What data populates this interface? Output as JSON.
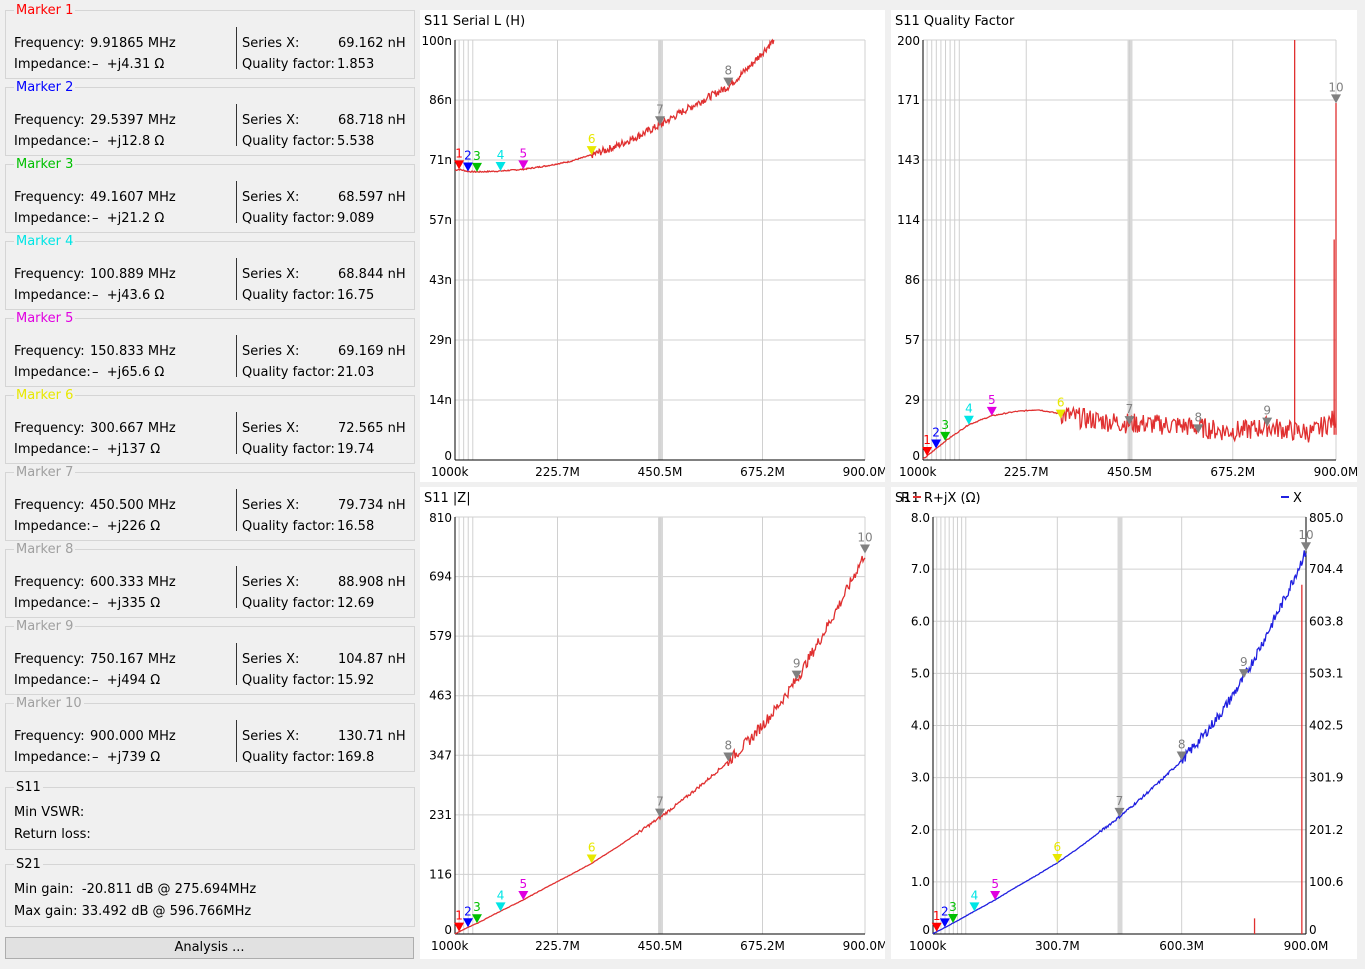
{
  "colors": {
    "marker1": "#ff0000",
    "marker2": "#0000ff",
    "marker3": "#00c000",
    "marker4": "#00e5e5",
    "marker5": "#e000e0",
    "marker6": "#e8e800",
    "marker7": "#808080",
    "trace_red": "#e03030",
    "trace_blue": "#2020e0",
    "grid": "#d0d0d0"
  },
  "markers": [
    {
      "title": "Marker 1",
      "freq_label": "Frequency:",
      "freq": "9.91865 MHz",
      "imp_label": "Impedance:",
      "imp": "–  +j4.31 Ω",
      "sx_label": "Series X:",
      "sx": "69.162 nH",
      "q_label": "Quality factor:",
      "q": "1.853"
    },
    {
      "title": "Marker 2",
      "freq_label": "Frequency:",
      "freq": "29.5397 MHz",
      "imp_label": "Impedance:",
      "imp": "–  +j12.8 Ω",
      "sx_label": "Series X:",
      "sx": "68.718 nH",
      "q_label": "Quality factor:",
      "q": "5.538"
    },
    {
      "title": "Marker 3",
      "freq_label": "Frequency:",
      "freq": "49.1607 MHz",
      "imp_label": "Impedance:",
      "imp": "–  +j21.2 Ω",
      "sx_label": "Series X:",
      "sx": "68.597 nH",
      "q_label": "Quality factor:",
      "q": "9.089"
    },
    {
      "title": "Marker 4",
      "freq_label": "Frequency:",
      "freq": "100.889 MHz",
      "imp_label": "Impedance:",
      "imp": "–  +j43.6 Ω",
      "sx_label": "Series X:",
      "sx": "68.844 nH",
      "q_label": "Quality factor:",
      "q": "16.75"
    },
    {
      "title": "Marker 5",
      "freq_label": "Frequency:",
      "freq": "150.833 MHz",
      "imp_label": "Impedance:",
      "imp": "–  +j65.6 Ω",
      "sx_label": "Series X:",
      "sx": "69.169 nH",
      "q_label": "Quality factor:",
      "q": "21.03"
    },
    {
      "title": "Marker 6",
      "freq_label": "Frequency:",
      "freq": "300.667 MHz",
      "imp_label": "Impedance:",
      "imp": "–  +j137 Ω",
      "sx_label": "Series X:",
      "sx": "72.565 nH",
      "q_label": "Quality factor:",
      "q": "19.74"
    },
    {
      "title": "Marker 7",
      "freq_label": "Frequency:",
      "freq": "450.500 MHz",
      "imp_label": "Impedance:",
      "imp": "–  +j226 Ω",
      "sx_label": "Series X:",
      "sx": "79.734 nH",
      "q_label": "Quality factor:",
      "q": "16.58"
    },
    {
      "title": "Marker 8",
      "freq_label": "Frequency:",
      "freq": "600.333 MHz",
      "imp_label": "Impedance:",
      "imp": "–  +j335 Ω",
      "sx_label": "Series X:",
      "sx": "88.908 nH",
      "q_label": "Quality factor:",
      "q": "12.69"
    },
    {
      "title": "Marker 9",
      "freq_label": "Frequency:",
      "freq": "750.167 MHz",
      "imp_label": "Impedance:",
      "imp": "–  +j494 Ω",
      "sx_label": "Series X:",
      "sx": "104.87 nH",
      "q_label": "Quality factor:",
      "q": "15.92"
    },
    {
      "title": "Marker 10",
      "freq_label": "Frequency:",
      "freq": "900.000 MHz",
      "imp_label": "Impedance:",
      "imp": "–  +j739 Ω",
      "sx_label": "Series X:",
      "sx": "130.71 nH",
      "q_label": "Quality factor:",
      "q": "169.8"
    }
  ],
  "marker_title_colors": [
    "#ff0000",
    "#0000ff",
    "#00c000",
    "#00e5e5",
    "#e000e0",
    "#e8e800",
    "#a0a0a0",
    "#a0a0a0",
    "#a0a0a0",
    "#a0a0a0"
  ],
  "s11": {
    "title": "S11",
    "min_vswr_label": "Min VSWR:",
    "return_loss_label": "Return loss:"
  },
  "s21": {
    "title": "S21",
    "min_gain": "Min gain:  -20.811 dB @ 275.694MHz",
    "max_gain": "Max gain: 33.492 dB @ 596.766MHz"
  },
  "analysis_button": "Analysis ...",
  "chart_data": [
    {
      "id": "serial_l",
      "type": "line",
      "title": "S11  Serial L (H)",
      "x_ticks": [
        "1000k",
        "225.7M",
        "450.5M",
        "675.2M",
        "900.0M"
      ],
      "y_ticks": [
        "100n",
        "86n",
        "71n",
        "57n",
        "43n",
        "29n",
        "14n",
        "0"
      ],
      "xlim": [
        1,
        900
      ],
      "ylim": [
        0,
        100
      ],
      "x_unit": "MHz",
      "y_unit": "nH",
      "x": [
        1,
        10,
        30,
        50,
        100,
        150,
        200,
        250,
        300,
        350,
        400,
        450,
        500,
        550,
        600,
        650,
        700
      ],
      "y": [
        69,
        69.2,
        68.7,
        68.6,
        68.8,
        69.2,
        70,
        71,
        72.6,
        74.5,
        77,
        79.7,
        83,
        86,
        88.9,
        94,
        100
      ],
      "markers": [
        {
          "label": "1",
          "x": 9.9,
          "y": 69.2,
          "color": "#ff0000"
        },
        {
          "label": "2",
          "x": 29.5,
          "y": 68.7,
          "color": "#0000ff"
        },
        {
          "label": "3",
          "x": 49.2,
          "y": 68.6,
          "color": "#00c000"
        },
        {
          "label": "4",
          "x": 100.9,
          "y": 68.8,
          "color": "#00e5e5"
        },
        {
          "label": "5",
          "x": 150.8,
          "y": 69.2,
          "color": "#e000e0"
        },
        {
          "label": "6",
          "x": 300.7,
          "y": 72.6,
          "color": "#e8e800"
        },
        {
          "label": "7",
          "x": 450.5,
          "y": 79.7,
          "color": "#808080"
        },
        {
          "label": "8",
          "x": 600.3,
          "y": 88.9,
          "color": "#808080"
        }
      ]
    },
    {
      "id": "quality",
      "type": "line",
      "title": "S11  Quality Factor",
      "x_ticks": [
        "1000k",
        "225.7M",
        "450.5M",
        "675.2M",
        "900.0M"
      ],
      "y_ticks": [
        "200",
        "171",
        "143",
        "114",
        "86",
        "57",
        "29",
        "0"
      ],
      "xlim": [
        1,
        900
      ],
      "ylim": [
        0,
        200
      ],
      "x_unit": "MHz",
      "x": [
        1,
        10,
        30,
        50,
        100,
        150,
        200,
        250,
        300,
        350,
        400,
        450,
        500,
        550,
        600,
        650,
        700,
        750,
        800,
        850,
        900
      ],
      "y": [
        0.5,
        1.9,
        5.5,
        9.1,
        16.8,
        21,
        23,
        24,
        22,
        19.7,
        18.5,
        17.5,
        17,
        16.6,
        15.5,
        14,
        14,
        16,
        14,
        13,
        20
      ],
      "spikes": [
        {
          "x": 810,
          "y": 200
        },
        {
          "x": 896,
          "y": 105
        },
        {
          "x": 900,
          "y": 170
        }
      ],
      "markers": [
        {
          "label": "1",
          "x": 9.9,
          "y": 1.9,
          "color": "#ff0000"
        },
        {
          "label": "2",
          "x": 29.5,
          "y": 5.5,
          "color": "#0000ff"
        },
        {
          "label": "3",
          "x": 49.2,
          "y": 9.1,
          "color": "#00c000"
        },
        {
          "label": "4",
          "x": 100.9,
          "y": 16.8,
          "color": "#00e5e5"
        },
        {
          "label": "5",
          "x": 150.8,
          "y": 21,
          "color": "#e000e0"
        },
        {
          "label": "6",
          "x": 300.7,
          "y": 19.7,
          "color": "#e8e800"
        },
        {
          "label": "7",
          "x": 450.5,
          "y": 16.6,
          "color": "#808080"
        },
        {
          "label": "8",
          "x": 600.3,
          "y": 12.7,
          "color": "#808080"
        },
        {
          "label": "9",
          "x": 750.2,
          "y": 15.9,
          "color": "#808080"
        },
        {
          "label": "10",
          "x": 900,
          "y": 169.8,
          "color": "#808080"
        }
      ]
    },
    {
      "id": "abs_z",
      "type": "line",
      "title": "S11  |Z|",
      "x_ticks": [
        "1000k",
        "225.7M",
        "450.5M",
        "675.2M",
        "900.0M"
      ],
      "y_ticks": [
        "810",
        "694",
        "579",
        "463",
        "347",
        "231",
        "116",
        "0"
      ],
      "xlim": [
        1,
        900
      ],
      "ylim": [
        0,
        810
      ],
      "x_unit": "MHz",
      "y_unit": "Ω",
      "x": [
        1,
        10,
        30,
        50,
        100,
        150,
        200,
        250,
        300,
        350,
        400,
        450,
        500,
        550,
        600,
        650,
        700,
        750,
        800,
        850,
        900
      ],
      "y": [
        0.5,
        4.5,
        13,
        21,
        44,
        66,
        90,
        113,
        137,
        165,
        195,
        226,
        260,
        296,
        335,
        380,
        432,
        494,
        570,
        650,
        739
      ],
      "markers": [
        {
          "label": "1",
          "x": 9.9,
          "y": 4.5,
          "color": "#ff0000"
        },
        {
          "label": "2",
          "x": 29.5,
          "y": 13,
          "color": "#0000ff"
        },
        {
          "label": "3",
          "x": 49.2,
          "y": 21,
          "color": "#00c000"
        },
        {
          "label": "4",
          "x": 100.9,
          "y": 44,
          "color": "#00e5e5"
        },
        {
          "label": "5",
          "x": 150.8,
          "y": 66,
          "color": "#e000e0"
        },
        {
          "label": "6",
          "x": 300.7,
          "y": 137,
          "color": "#e8e800"
        },
        {
          "label": "7",
          "x": 450.5,
          "y": 226,
          "color": "#808080"
        },
        {
          "label": "8",
          "x": 600.3,
          "y": 335,
          "color": "#808080"
        },
        {
          "label": "9",
          "x": 750.2,
          "y": 494,
          "color": "#808080"
        },
        {
          "label": "10",
          "x": 900,
          "y": 739,
          "color": "#808080"
        }
      ]
    },
    {
      "id": "r_jx",
      "type": "line",
      "title": "S11  R+jX (Ω)",
      "left_legend": "R",
      "right_legend": "X",
      "x_ticks": [
        "1000k",
        "300.7M",
        "600.3M",
        "900.0M"
      ],
      "y_ticks": [
        "8.0",
        "7.0",
        "6.0",
        "5.0",
        "4.0",
        "3.0",
        "2.0",
        "1.0",
        "0"
      ],
      "y2_ticks": [
        "805.0",
        "704.4",
        "603.8",
        "503.1",
        "402.5",
        "301.9",
        "201.2",
        "100.6",
        "0"
      ],
      "xlim": [
        1,
        900
      ],
      "ylim": [
        0,
        8
      ],
      "y2lim": [
        0,
        805
      ],
      "x_unit": "MHz",
      "series": [
        {
          "name": "R",
          "color": "#e03030",
          "x": [
            776,
            776,
            890,
            890
          ],
          "y": [
            0,
            0.3,
            0,
            6.7
          ]
        },
        {
          "name": "X",
          "color": "#2020e0",
          "axis": "right",
          "x": [
            1,
            10,
            30,
            50,
            100,
            150,
            200,
            250,
            300,
            350,
            400,
            450,
            500,
            550,
            600,
            650,
            700,
            750,
            800,
            850,
            900
          ],
          "y": [
            0.5,
            4.3,
            12.8,
            21.2,
            43.6,
            65.6,
            90,
            113,
            137,
            165,
            195,
            226,
            260,
            296,
            335,
            380,
            432,
            494,
            570,
            650,
            739
          ]
        }
      ],
      "markers": [
        {
          "label": "1",
          "x": 9.9,
          "y": 4.3,
          "color": "#ff0000"
        },
        {
          "label": "2",
          "x": 29.5,
          "y": 12.8,
          "color": "#0000ff"
        },
        {
          "label": "3",
          "x": 49.2,
          "y": 21.2,
          "color": "#00c000"
        },
        {
          "label": "4",
          "x": 100.9,
          "y": 43.6,
          "color": "#00e5e5"
        },
        {
          "label": "5",
          "x": 150.8,
          "y": 65.6,
          "color": "#e000e0"
        },
        {
          "label": "6",
          "x": 300.7,
          "y": 137,
          "color": "#e8e800"
        },
        {
          "label": "7",
          "x": 450.5,
          "y": 226,
          "color": "#808080"
        },
        {
          "label": "8",
          "x": 600.3,
          "y": 335,
          "color": "#808080"
        },
        {
          "label": "9",
          "x": 750.2,
          "y": 494,
          "color": "#808080"
        },
        {
          "label": "10",
          "x": 900,
          "y": 739,
          "color": "#808080"
        }
      ]
    }
  ]
}
